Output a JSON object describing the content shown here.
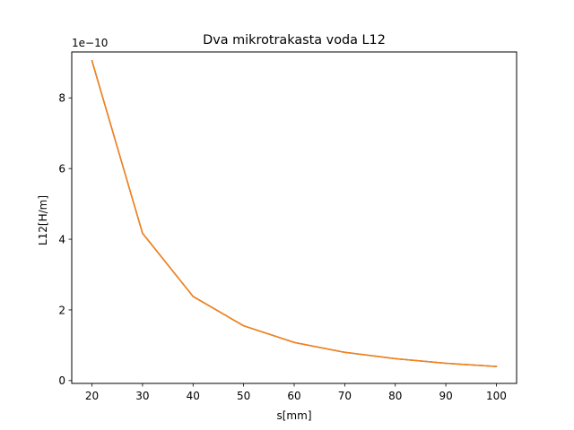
{
  "chart_data": {
    "type": "line",
    "title": "Dva mikrotrakasta voda L12",
    "xlabel": "s[mm]",
    "ylabel": "L12[H/m]",
    "y_offset_text": "1e−10",
    "y_scale_exponent": -10,
    "xlim": [
      16,
      104
    ],
    "ylim": [
      -0.08,
      9.3
    ],
    "x_ticks": [
      20,
      30,
      40,
      50,
      60,
      70,
      80,
      90,
      100
    ],
    "y_ticks": [
      0,
      2,
      4,
      6,
      8
    ],
    "grid": false,
    "legend": "none",
    "x": [
      20,
      30,
      40,
      50,
      60,
      70,
      80,
      90,
      100
    ],
    "series": [
      {
        "color": "#1f77b4",
        "values": [
          9.05,
          4.17,
          2.38,
          1.55,
          1.08,
          0.8,
          0.62,
          0.49,
          0.4
        ]
      },
      {
        "color": "#ff7f0e",
        "values": [
          9.05,
          4.17,
          2.38,
          1.55,
          1.08,
          0.8,
          0.62,
          0.49,
          0.4
        ]
      }
    ]
  }
}
